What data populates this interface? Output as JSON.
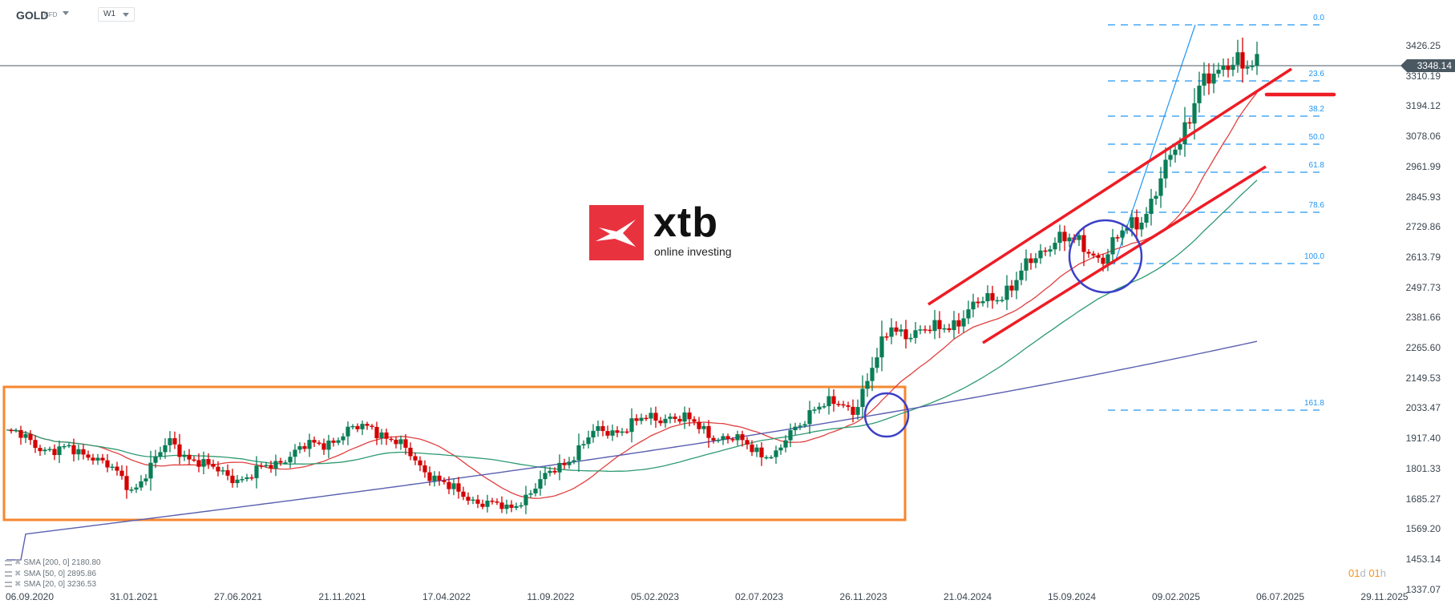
{
  "header": {
    "symbol": "GOLD",
    "symbol_type": "CFD",
    "timeframe": "W1"
  },
  "logo": {
    "brand": "xtb",
    "tagline": "online investing"
  },
  "price_axis": {
    "labels": [
      "3426.25",
      "3310.19",
      "3194.12",
      "3078.06",
      "2961.99",
      "2845.93",
      "2729.86",
      "2613.79",
      "2497.73",
      "2381.66",
      "2265.60",
      "2149.53",
      "2033.47",
      "1917.40",
      "1801.33",
      "1685.27",
      "1569.20",
      "1453.14",
      "1337.07"
    ],
    "current_price": "3348.14"
  },
  "date_axis": {
    "labels": [
      "06.09.2020",
      "31.01.2021",
      "27.06.2021",
      "21.11.2021",
      "17.04.2022",
      "11.09.2022",
      "05.02.2023",
      "02.07.2023",
      "26.11.2023",
      "21.04.2024",
      "15.09.2024",
      "09.02.2025",
      "06.07.2025",
      "29.11.2025"
    ]
  },
  "fibonacci": {
    "levels": [
      "0.0",
      "23.6",
      "38.2",
      "50.0",
      "61.8",
      "78.6",
      "100.0",
      "161.8"
    ]
  },
  "legend": {
    "items": [
      {
        "label": "SMA [200, 0] 2180.80"
      },
      {
        "label": "SMA [50, 0] 2895.86"
      },
      {
        "label": "SMA [20, 0] 3236.53"
      }
    ]
  },
  "countdown": {
    "d_num": "01",
    "d_unit": "d",
    "h_num": "01",
    "h_unit": "h"
  },
  "colors": {
    "bull": "#0a7d56",
    "bear": "#d40000",
    "sma20": "#e0403f",
    "sma50": "#2e9a72",
    "sma200": "#5a5fb0",
    "fib": "#2196f3",
    "channel": "#ee1c25",
    "box": "#f7862f",
    "circle": "#3b3fc8"
  },
  "chart_data": {
    "type": "candlestick",
    "title": "GOLD CFD W1",
    "instrument": "GOLD",
    "timeframe": "W1",
    "xlabel": "",
    "ylabel": "",
    "ylim": [
      1337.07,
      3426.25
    ],
    "last_price": 3348.14,
    "x_ticks": [
      "06.09.2020",
      "31.01.2021",
      "27.06.2021",
      "21.11.2021",
      "17.04.2022",
      "11.09.2022",
      "05.02.2023",
      "02.07.2023",
      "26.11.2023",
      "21.04.2024",
      "15.09.2024",
      "09.02.2025",
      "06.07.2025",
      "29.11.2025"
    ],
    "y_ticks": [
      3426.25,
      3310.19,
      3194.12,
      3078.06,
      2961.99,
      2845.93,
      2729.86,
      2613.79,
      2497.73,
      2381.66,
      2265.6,
      2149.53,
      2033.47,
      1917.4,
      1801.33,
      1685.27,
      1569.2,
      1453.14,
      1337.07
    ],
    "close_path_approx": [
      [
        "2020-09",
        1940
      ],
      [
        "2020-11",
        1870
      ],
      [
        "2021-01",
        1860
      ],
      [
        "2021-03",
        1730
      ],
      [
        "2021-05",
        1900
      ],
      [
        "2021-07",
        1800
      ],
      [
        "2021-09",
        1760
      ],
      [
        "2021-11",
        1850
      ],
      [
        "2022-03",
        1970
      ],
      [
        "2022-05",
        1850
      ],
      [
        "2022-07",
        1720
      ],
      [
        "2022-09",
        1650
      ],
      [
        "2022-11",
        1760
      ],
      [
        "2023-01",
        1930
      ],
      [
        "2023-05",
        2000
      ],
      [
        "2023-07",
        1940
      ],
      [
        "2023-10",
        1850
      ],
      [
        "2023-12",
        2040
      ],
      [
        "2024-02",
        2030
      ],
      [
        "2024-04",
        2330
      ],
      [
        "2024-06",
        2330
      ],
      [
        "2024-08",
        2450
      ],
      [
        "2024-10",
        2700
      ],
      [
        "2024-11",
        2620
      ],
      [
        "2025-01",
        2770
      ],
      [
        "2025-03",
        3080
      ],
      [
        "2025-04",
        3300
      ],
      [
        "2025-05",
        3290
      ],
      [
        "2025-06",
        3390
      ],
      [
        "2025-07",
        3348.14
      ]
    ],
    "series": [
      {
        "name": "SMA 20",
        "last": 3236.53
      },
      {
        "name": "SMA 50",
        "last": 2895.86
      },
      {
        "name": "SMA 200",
        "last": 2180.8
      }
    ],
    "fibonacci_levels": [
      {
        "level": "0.0",
        "price": 3500
      },
      {
        "level": "23.6",
        "price": 3300
      },
      {
        "level": "38.2",
        "price": 3177
      },
      {
        "level": "50.0",
        "price": 3077
      },
      {
        "level": "61.8",
        "price": 2978
      },
      {
        "level": "78.6",
        "price": 2836
      },
      {
        "level": "100.0",
        "price": 2640
      },
      {
        "level": "161.8",
        "price": 2120
      }
    ],
    "annotations": [
      "Orange rectangle: consolidation range 2020-09 to 2024-02 (~1610-2150)",
      "Red rising channel from 2024-04 to 2025-07",
      "Blue circles marking SMA20 touches (2024-02, 2024-11)",
      "Red horizontal support marker near 3240"
    ],
    "grid": false,
    "legend_position": "bottom-left"
  }
}
